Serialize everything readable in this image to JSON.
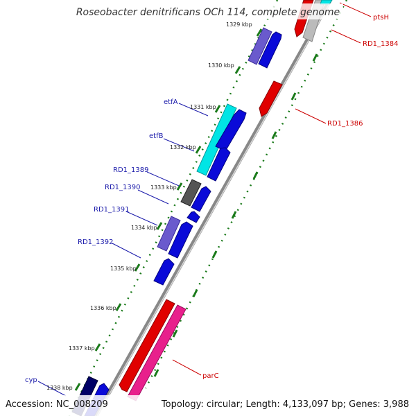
{
  "title": "Roseobacter denitrificans OCh 114, complete genome",
  "footer": {
    "accession": "Accession: NC_008209",
    "info": "Topology: circular; Length: 4,133,097 bp; Genes: 3,988"
  },
  "ticks": [
    "1329 kbp",
    "1330 kbp",
    "1331 kbp",
    "1332 kbp",
    "1333 kbp",
    "1334 kbp",
    "1335 kbp",
    "1336 kbp",
    "1337 kbp",
    "1338 kbp"
  ],
  "genes_left": [
    "etfA",
    "etfB",
    "RD1_1389",
    "RD1_1390",
    "RD1_1391",
    "RD1_1392",
    "cyp"
  ],
  "genes_right": [
    "ptsH",
    "RD1_1384",
    "RD1_1386",
    "parC"
  ],
  "colors": {
    "forward_cds": "#0a0ad8",
    "reverse_cds": "#e00000",
    "cyan_gene": "#00e5e5",
    "purple_gene": "#6a5acd",
    "gray_gene": "#555555",
    "magenta_gene": "#e8208c",
    "navy_gene": "#000066",
    "label_left": "#1a1aaa",
    "label_right": "#cc0000",
    "tick_color": "#1a7a1a"
  }
}
